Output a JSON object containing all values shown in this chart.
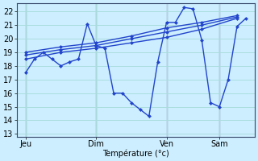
{
  "background_color": "#cceeff",
  "grid_color": "#aadddd",
  "line_color": "#2244cc",
  "ylim": [
    12.8,
    22.6
  ],
  "yticks": [
    13,
    14,
    15,
    16,
    17,
    18,
    19,
    20,
    21,
    22
  ],
  "xlabel": "Température (°c)",
  "day_labels": [
    "Jeu",
    "Dim",
    "Ven",
    "Sam"
  ],
  "day_positions": [
    0,
    8,
    16,
    22
  ],
  "xlim": [
    -1,
    26
  ],
  "series_main_x": [
    0,
    1,
    2,
    3,
    4,
    5,
    6,
    7,
    8,
    9,
    10,
    11,
    12,
    13,
    14,
    15,
    16,
    17,
    18,
    19,
    20,
    21,
    22,
    23,
    24,
    25
  ],
  "series_main_y": [
    17.5,
    18.5,
    19.0,
    18.5,
    18.0,
    18.3,
    18.5,
    21.1,
    19.5,
    19.3,
    16.0,
    16.0,
    15.3,
    14.8,
    14.3,
    18.3,
    21.2,
    21.2,
    22.3,
    22.2,
    19.9,
    15.3,
    15.0,
    17.0,
    20.9,
    21.5
  ],
  "series2_x": [
    0,
    4,
    8,
    12,
    16,
    20,
    24
  ],
  "series2_y": [
    18.5,
    19.0,
    19.3,
    19.7,
    20.1,
    20.7,
    21.5
  ],
  "series3_x": [
    0,
    4,
    8,
    12,
    16,
    20,
    24
  ],
  "series3_y": [
    18.8,
    19.2,
    19.5,
    20.0,
    20.5,
    21.0,
    21.6
  ],
  "series4_x": [
    0,
    4,
    8,
    12,
    16,
    20,
    24
  ],
  "series4_y": [
    19.0,
    19.4,
    19.7,
    20.2,
    20.8,
    21.2,
    21.7
  ],
  "vline_color": "#667788",
  "spine_color": "#334466"
}
